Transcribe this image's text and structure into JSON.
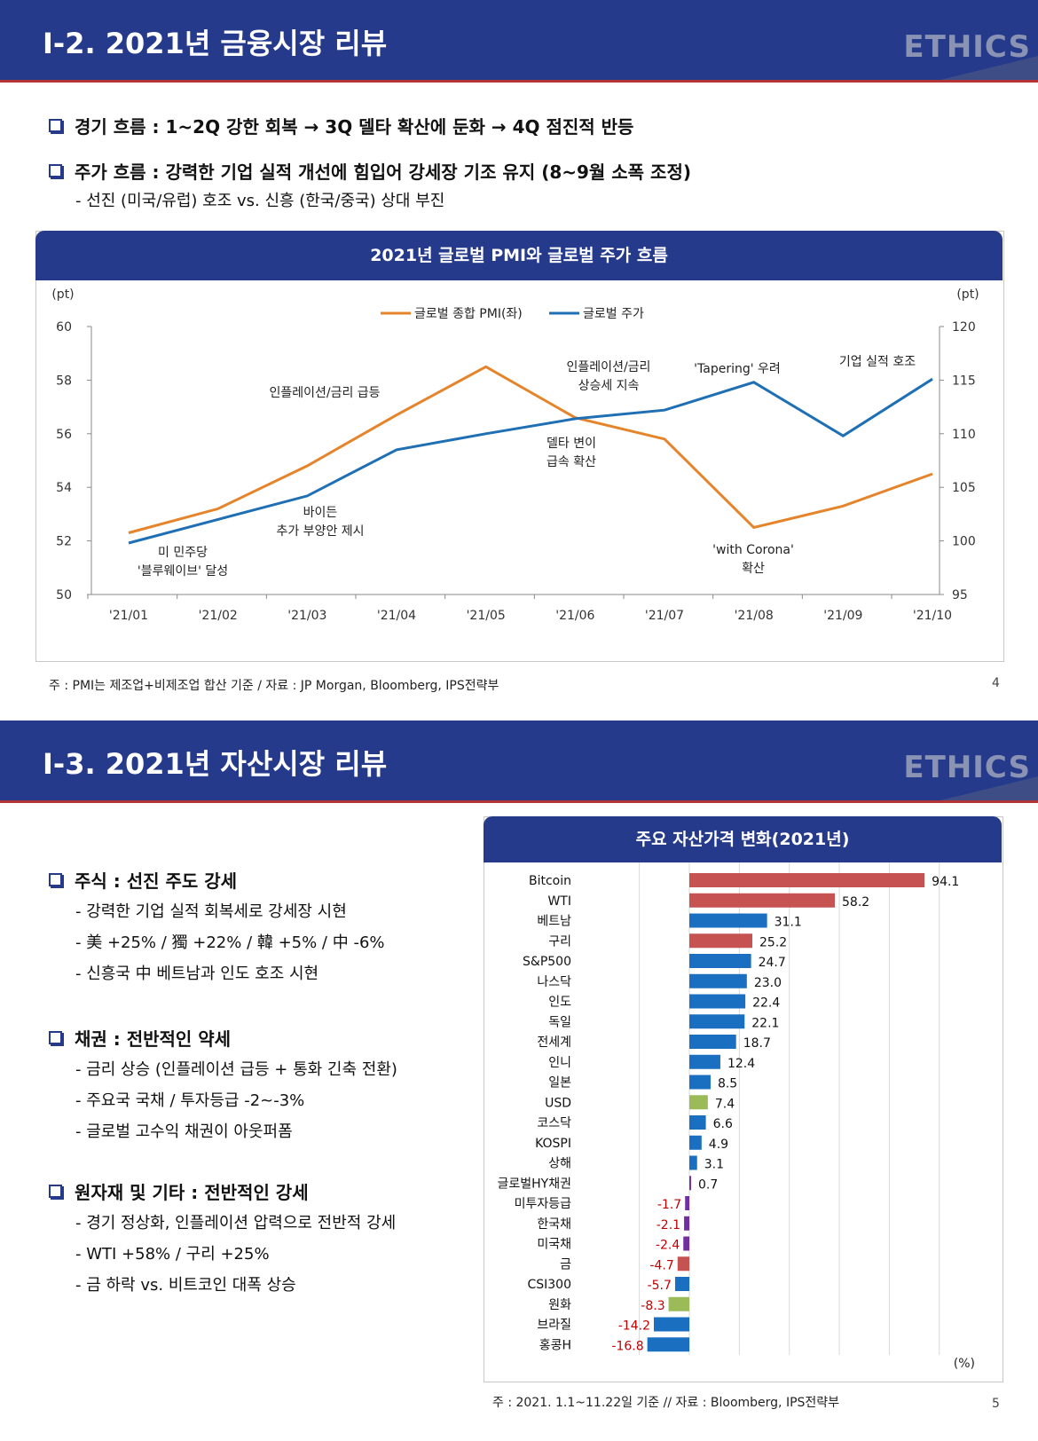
{
  "slide1": {
    "title": "Ⅰ-2. 2021년 금융시장 리뷰",
    "logo": "ETHICS",
    "bullets": [
      "경기 흐름 : 1~2Q 강한 회복 → 3Q 델타 확산에 둔화 → 4Q 점진적 반등",
      "주가 흐름 : 강력한 기업 실적 개선에 힘입어 강세장 기조 유지 (8~9월 소폭 조정)"
    ],
    "sub_bullet": "- 선진 (미국/유럽) 호조 vs. 신흥 (한국/중국) 상대 부진",
    "chart_header": "2021년 글로벌 PMI와 글로벌 주가 흐름",
    "footnote": "주 : PMI는 제조업+비제조업 합산 기준 / 자료 : JP Morgan, Bloomberg, IPS전략부",
    "page": "4"
  },
  "slide2": {
    "title": "Ⅰ-3. 2021년 자산시장 리뷰",
    "logo": "ETHICS",
    "sections": [
      {
        "heading": "주식 : 선진 주도 강세",
        "items": [
          "- 강력한 기업 실적 회복세로 강세장 시현",
          "- 美 +25% / 獨 +22% / 韓 +5% / 中 -6%",
          "- 신흥국 中 베트남과 인도 호조 시현"
        ]
      },
      {
        "heading": "채권 : 전반적인 약세",
        "items": [
          "- 금리 상승 (인플레이션 급등 + 통화 긴축 전환)",
          "- 주요국 국채 / 투자등급 -2~-3%",
          "- 글로벌 고수익 채권이 아웃퍼폼"
        ]
      },
      {
        "heading": "원자재 및 기타 : 전반적인 강세",
        "items": [
          "- 경기 정상화, 인플레이션 압력으로 전반적 강세",
          "- WTI +58% / 구리 +25%",
          "- 금 하락 vs. 비트코인 대폭 상승"
        ]
      }
    ],
    "chart_header": "주요 자산가격 변화(2021년)",
    "footnote": "주 : 2021. 1.1~11.22일 기준 // 자료 : Bloomberg, IPS전략부",
    "page": "5"
  },
  "colors": {
    "header_bg": "#263a8c",
    "header_rule": "#b33434",
    "pmi_line": "#e5842a",
    "stock_line": "#1f6fb5",
    "bar_red": "#c65252",
    "bar_blue": "#1b6fc1",
    "bar_green": "#9bbb59",
    "bar_purple": "#7030a0",
    "neg_label": "#c00000"
  },
  "chart_data": [
    {
      "type": "line",
      "title": "2021년 글로벌 PMI와 글로벌 주가 흐름",
      "x": [
        "'21/01",
        "'21/02",
        "'21/03",
        "'21/04",
        "'21/05",
        "'21/06",
        "'21/07",
        "'21/08",
        "'21/09",
        "'21/10"
      ],
      "series": [
        {
          "name": "글로벌 종합 PMI(좌)",
          "axis": "left",
          "values": [
            52.3,
            53.2,
            54.8,
            56.7,
            58.5,
            56.6,
            55.8,
            52.5,
            53.3,
            54.5
          ]
        },
        {
          "name": "글로벌 주가",
          "axis": "right",
          "values": [
            99.8,
            102.0,
            104.2,
            108.5,
            110.0,
            111.4,
            112.2,
            114.8,
            109.8,
            115.1
          ]
        }
      ],
      "y_left": {
        "unit": "(pt)",
        "ylim": [
          50,
          60
        ],
        "ticks": [
          50,
          52,
          54,
          56,
          58,
          60
        ]
      },
      "y_right": {
        "unit": "(pt)",
        "ylim": [
          95,
          120
        ],
        "ticks": [
          95,
          100,
          105,
          110,
          115,
          120
        ]
      },
      "legend": "top-center",
      "grid": false,
      "annotations": [
        {
          "lines": [
            "미 민주당",
            "'블루웨이브' 달성"
          ]
        },
        {
          "lines": [
            "바이든",
            "추가 부양안 제시"
          ]
        },
        {
          "lines": [
            "인플레이션/금리 급등"
          ]
        },
        {
          "lines": [
            "델타 변이",
            "급속 확산"
          ]
        },
        {
          "lines": [
            "인플레이션/금리",
            "상승세 지속"
          ]
        },
        {
          "lines": [
            "'Tapering' 우려"
          ]
        },
        {
          "lines": [
            "'with Corona'",
            "확산"
          ]
        },
        {
          "lines": [
            "기업 실적 호조"
          ]
        }
      ]
    },
    {
      "type": "bar",
      "orientation": "horizontal",
      "title": "주요 자산가격 변화(2021년)",
      "unit": "(%)",
      "grid": true,
      "categories": [
        "Bitcoin",
        "WTI",
        "베트남",
        "구리",
        "S&P500",
        "나스닥",
        "인도",
        "독일",
        "전세계",
        "인니",
        "일본",
        "USD",
        "코스닥",
        "KOSPI",
        "상해",
        "글로벌HY채권",
        "미투자등급",
        "한국채",
        "미국채",
        "금",
        "CSI300",
        "원화",
        "브라질",
        "홍콩H"
      ],
      "values": [
        94.1,
        58.2,
        31.1,
        25.2,
        24.7,
        23.0,
        22.4,
        22.1,
        18.7,
        12.4,
        8.5,
        7.4,
        6.6,
        4.9,
        3.1,
        0.7,
        -1.7,
        -2.1,
        -2.4,
        -4.7,
        -5.7,
        -8.3,
        -14.2,
        -16.8
      ],
      "value_labels": [
        "94.1",
        "58.2",
        "31.1",
        "25.2",
        "24.7",
        "23.0",
        "22.4",
        "22.1",
        "18.7",
        "12.4",
        "8.5",
        "7.4",
        "6.6",
        "4.9",
        "3.1",
        "0.7",
        "-1.7",
        "-2.1",
        "-2.4",
        "-4.7",
        "-5.7",
        "-8.3",
        "-14.2",
        "-16.8"
      ],
      "bar_colors": [
        "red",
        "red",
        "blue",
        "red",
        "blue",
        "blue",
        "blue",
        "blue",
        "blue",
        "blue",
        "blue",
        "green",
        "blue",
        "blue",
        "blue",
        "purple",
        "purple",
        "purple",
        "purple",
        "red",
        "blue",
        "green",
        "blue",
        "blue"
      ]
    }
  ]
}
